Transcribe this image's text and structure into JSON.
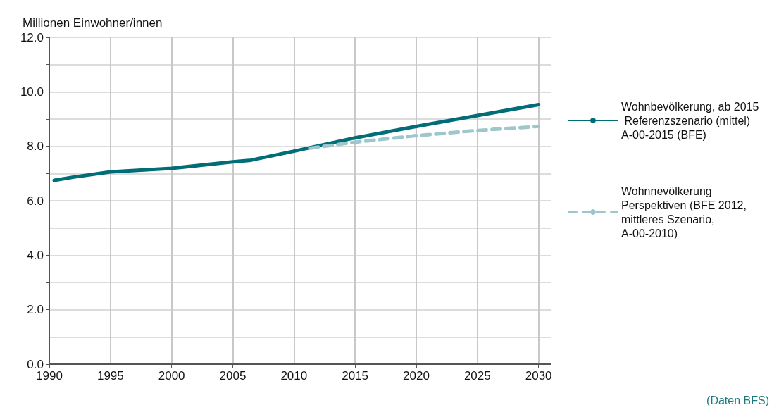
{
  "chart_data": {
    "type": "line",
    "ylabel": "Millionen Einwohner/innen",
    "xlim": [
      1990,
      2031
    ],
    "xticks": [
      1990,
      1995,
      2000,
      2005,
      2010,
      2015,
      2020,
      2025,
      2030
    ],
    "ylim": [
      0,
      12
    ],
    "yticks": [
      {
        "value": 0,
        "label": "0.0"
      },
      {
        "value": 1,
        "label": null
      },
      {
        "value": 2,
        "label": "2.0"
      },
      {
        "value": 3,
        "label": null
      },
      {
        "value": 4,
        "label": "4.0"
      },
      {
        "value": 5,
        "label": null
      },
      {
        "value": 6,
        "label": "6.0"
      },
      {
        "value": 7,
        "label": null
      },
      {
        "value": 8,
        "label": "8.0"
      },
      {
        "value": 9,
        "label": null
      },
      {
        "value": 10,
        "label": "10.0"
      },
      {
        "value": 11,
        "label": null
      },
      {
        "value": 12,
        "label": "12.0"
      }
    ],
    "grid": true,
    "legend": "right",
    "marker": "none",
    "series": [
      {
        "name": "Wohnbevölkerung, ab 2015 Referenzszenario (mittel) A-00-2015 (BFE)",
        "color": "#006d77",
        "line_style": "solid",
        "x": [
          1990.4,
          1992,
          1995,
          2000,
          2005,
          2006.5,
          2010,
          2015,
          2020,
          2025,
          2030
        ],
        "values": [
          6.75,
          6.87,
          7.06,
          7.19,
          7.43,
          7.49,
          7.82,
          8.31,
          8.73,
          9.13,
          9.53
        ]
      },
      {
        "name": "Wohnnevölkerung Perspektiven (BFE 2012, mittleres Szenario, A-00-2010)",
        "color": "#9ec6cd",
        "line_style": "dashed",
        "x": [
          2011.3,
          2015,
          2020,
          2025,
          2030
        ],
        "values": [
          7.93,
          8.15,
          8.39,
          8.58,
          8.73
        ]
      }
    ],
    "annotations": [
      "(Daten BFS)"
    ]
  }
}
